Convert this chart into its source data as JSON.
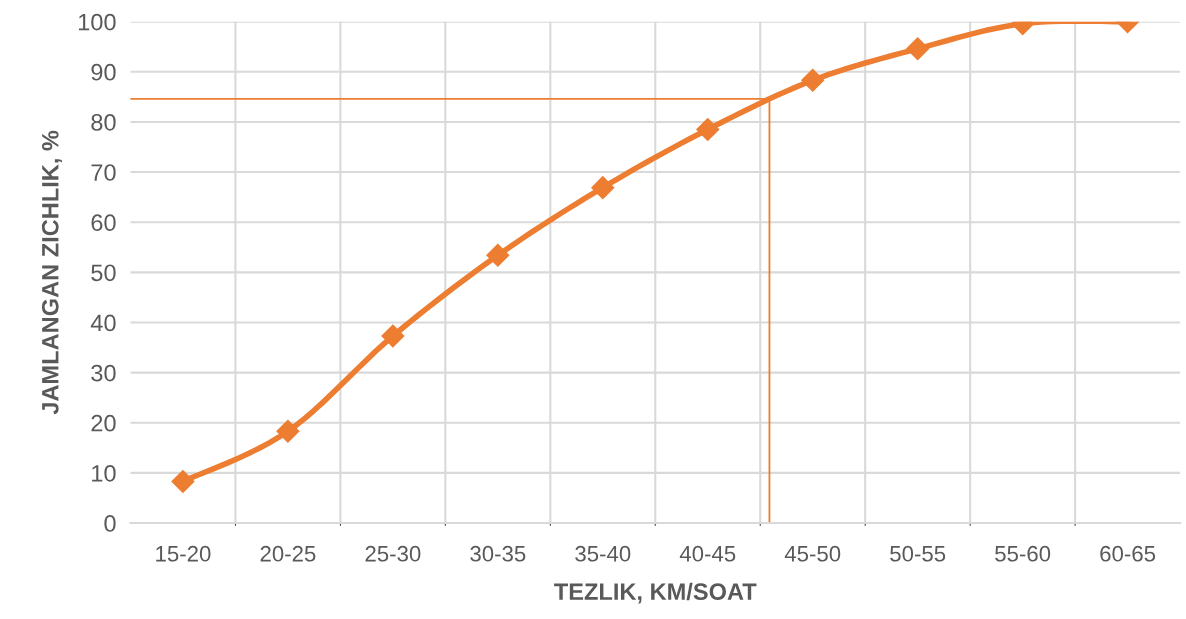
{
  "chart_data": {
    "type": "line",
    "xlabel": "TEZLIK, KM/SOAT",
    "ylabel": "JAMLANGAN ZICHLIK, %",
    "categories": [
      "15-20",
      "20-25",
      "25-30",
      "30-35",
      "35-40",
      "40-45",
      "45-50",
      "50-55",
      "55-60",
      "60-65"
    ],
    "series": [
      {
        "color": "#ed7d31",
        "values": [
          8.3,
          18.3,
          37.3,
          53.4,
          66.9,
          78.5,
          88.3,
          94.6,
          99.6,
          100
        ]
      }
    ],
    "ylim": [
      0,
      100
    ],
    "yticks": [
      0,
      10,
      20,
      30,
      40,
      50,
      60,
      70,
      80,
      90,
      100
    ],
    "ref_lines": [
      {
        "axis": "y",
        "value": 84.6,
        "color": "#ed7d31"
      }
    ],
    "grid": true,
    "marker": "diamond",
    "line_style": "solid"
  }
}
